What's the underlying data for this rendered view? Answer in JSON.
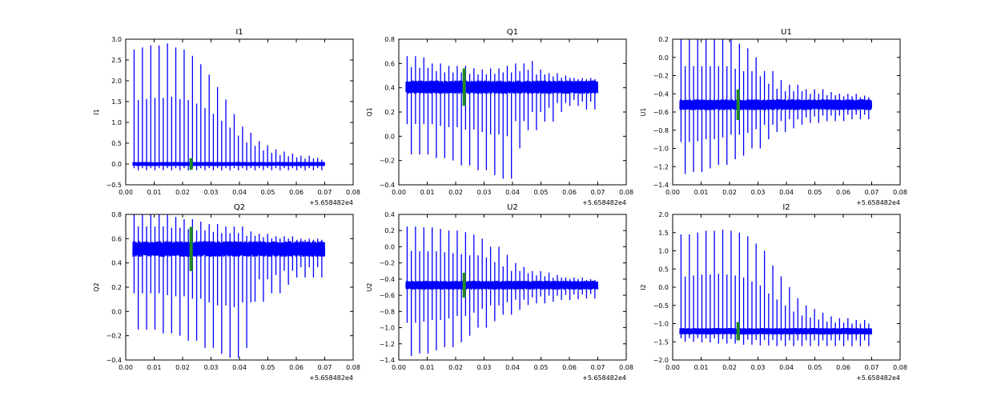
{
  "chart_data": [
    {
      "type": "line",
      "title": "I1",
      "ylabel": "I1",
      "xlim": [
        0.0,
        0.08
      ],
      "ylim": [
        -0.5,
        3.0
      ],
      "xticks": [
        "0.00",
        "0.01",
        "0.02",
        "0.03",
        "0.04",
        "0.05",
        "0.06",
        "0.07",
        "0.08"
      ],
      "yticks": [
        "−0.5",
        "0.0",
        "0.5",
        "1.0",
        "1.5",
        "2.0",
        "2.5",
        "3.0"
      ],
      "x_offset": "+5.658482e4",
      "x_range": [
        0.0025,
        0.07
      ],
      "baseline": [
        -0.05,
        0.05
      ],
      "spike_tops": [
        2.75,
        2.8,
        2.85,
        2.85,
        2.9,
        2.8,
        2.75,
        2.6,
        2.4,
        2.15,
        1.85,
        1.55,
        1.2,
        0.9,
        0.75,
        0.55,
        0.45,
        0.35,
        0.3,
        0.25,
        0.2,
        0.2,
        0.15
      ],
      "spike_bottoms": [
        -0.15,
        -0.15
      ],
      "highlight_x": 0.023,
      "grid": false
    },
    {
      "type": "line",
      "title": "Q1",
      "ylabel": "Q1",
      "xlim": [
        0.0,
        0.08
      ],
      "ylim": [
        -0.4,
        0.8
      ],
      "xticks": [
        "0.00",
        "0.01",
        "0.02",
        "0.03",
        "0.04",
        "0.05",
        "0.06",
        "0.07",
        "0.08"
      ],
      "yticks": [
        "−0.4",
        "−0.2",
        "0.0",
        "0.2",
        "0.4",
        "0.6",
        "0.8"
      ],
      "x_offset": "+5.658482e4",
      "x_range": [
        0.0025,
        0.07
      ],
      "baseline": [
        0.35,
        0.46
      ],
      "spike_tops": [
        0.66,
        0.65,
        0.6,
        0.58,
        0.58,
        0.56,
        0.55,
        0.56,
        0.58,
        0.6,
        0.62,
        0.55,
        0.52,
        0.5,
        0.48,
        0.48
      ],
      "spike_bottoms": [
        -0.15,
        -0.15,
        -0.18,
        -0.2,
        -0.24,
        -0.28,
        -0.32,
        -0.35,
        -0.1,
        0.05,
        0.12,
        0.2,
        0.25,
        0.22
      ],
      "highlight_x": 0.023,
      "grid": false
    },
    {
      "type": "line",
      "title": "U1",
      "ylabel": "U1",
      "xlim": [
        0.0,
        0.08
      ],
      "ylim": [
        -1.4,
        0.2
      ],
      "xticks": [
        "0.00",
        "0.01",
        "0.02",
        "0.03",
        "0.04",
        "0.05",
        "0.06",
        "0.07",
        "0.08"
      ],
      "yticks": [
        "−1.4",
        "−1.2",
        "−1.0",
        "−0.8",
        "−0.6",
        "−0.4",
        "−0.2",
        "0.0",
        "0.2"
      ],
      "x_offset": "+5.658482e4",
      "x_range": [
        0.0025,
        0.07
      ],
      "baseline": [
        -0.58,
        -0.46
      ],
      "spike_tops": [
        0.2,
        0.2,
        0.2,
        0.2,
        0.2,
        0.15,
        0.1,
        0.0,
        -0.15,
        -0.25,
        -0.3,
        -0.3,
        -0.35,
        -0.35,
        -0.38,
        -0.4,
        -0.4,
        -0.42
      ],
      "spike_bottoms": [
        -1.28,
        -1.26,
        -1.22,
        -1.18,
        -1.12,
        -1.08,
        -1.0,
        -0.9,
        -0.82,
        -0.78,
        -0.74,
        -0.72,
        -0.7,
        -0.7,
        -0.68,
        -0.68
      ],
      "highlight_x": 0.023,
      "grid": false
    },
    {
      "type": "line",
      "title": "Q2",
      "ylabel": "Q2",
      "xlim": [
        0.0,
        0.08
      ],
      "ylim": [
        -0.4,
        0.8
      ],
      "xticks": [
        "0.00",
        "0.01",
        "0.02",
        "0.03",
        "0.04",
        "0.05",
        "0.06",
        "0.07",
        "0.08"
      ],
      "yticks": [
        "−0.4",
        "−0.2",
        "0.0",
        "0.2",
        "0.4",
        "0.6",
        "0.8"
      ],
      "x_offset": "+5.658482e4",
      "x_range": [
        0.0025,
        0.07
      ],
      "baseline": [
        0.45,
        0.58
      ],
      "spike_tops": [
        0.8,
        0.8,
        0.8,
        0.78,
        0.76,
        0.74,
        0.72,
        0.7,
        0.7,
        0.66,
        0.64,
        0.62,
        0.62,
        0.6,
        0.6
      ],
      "spike_bottoms": [
        -0.15,
        -0.15,
        -0.18,
        -0.2,
        -0.24,
        -0.3,
        -0.35,
        -0.38,
        -0.3,
        0.08,
        0.15,
        0.22,
        0.28,
        0.28
      ],
      "highlight_x": 0.023,
      "grid": false
    },
    {
      "type": "line",
      "title": "U2",
      "ylabel": "U2",
      "xlim": [
        0.0,
        0.08
      ],
      "ylim": [
        -1.4,
        0.4
      ],
      "xticks": [
        "0.00",
        "0.01",
        "0.02",
        "0.03",
        "0.04",
        "0.05",
        "0.06",
        "0.07",
        "0.08"
      ],
      "yticks": [
        "−1.4",
        "−1.2",
        "−1.0",
        "−0.8",
        "−0.6",
        "−0.4",
        "−0.2",
        "0.0",
        "0.2",
        "0.4"
      ],
      "x_offset": "+5.658482e4",
      "x_range": [
        0.0025,
        0.07
      ],
      "baseline": [
        -0.53,
        -0.42
      ],
      "spike_tops": [
        0.25,
        0.24,
        0.24,
        0.22,
        0.2,
        0.18,
        0.15,
        0.1,
        0.0,
        -0.1,
        -0.2,
        -0.25,
        -0.3,
        -0.32,
        -0.35,
        -0.38,
        -0.38,
        -0.4
      ],
      "spike_bottoms": [
        -1.35,
        -1.32,
        -1.28,
        -1.24,
        -1.18,
        -1.1,
        -1.0,
        -0.92,
        -0.84,
        -0.78,
        -0.72,
        -0.7,
        -0.68,
        -0.66,
        -0.65,
        -0.64
      ],
      "highlight_x": 0.023,
      "grid": false
    },
    {
      "type": "line",
      "title": "I2",
      "ylabel": "I2",
      "xlim": [
        0.0,
        0.08
      ],
      "ylim": [
        -2.0,
        2.0
      ],
      "xticks": [
        "0.00",
        "0.01",
        "0.02",
        "0.03",
        "0.04",
        "0.05",
        "0.06",
        "0.07",
        "0.08"
      ],
      "yticks": [
        "−2.0",
        "−1.5",
        "−1.0",
        "−0.5",
        "0.0",
        "0.5",
        "1.0",
        "1.5",
        "2.0"
      ],
      "x_offset": "+5.658482e4",
      "x_range": [
        0.0025,
        0.07
      ],
      "baseline": [
        -1.3,
        -1.12
      ],
      "spike_tops": [
        1.45,
        1.5,
        1.55,
        1.55,
        1.58,
        1.55,
        1.5,
        1.4,
        1.2,
        1.0,
        0.6,
        0.3,
        0.0,
        -0.3,
        -0.5,
        -0.6,
        -0.7,
        -0.8,
        -0.85,
        -0.85,
        -0.9,
        -0.9
      ],
      "spike_bottoms": [
        -1.5,
        -1.52,
        -1.55,
        -1.58,
        -1.6,
        -1.62,
        -1.62,
        -1.62,
        -1.62,
        -1.62
      ],
      "highlight_x": 0.023,
      "grid": false
    }
  ],
  "colors": {
    "line": "#0000ff",
    "highlight": "#228b22",
    "axis": "#000000"
  }
}
